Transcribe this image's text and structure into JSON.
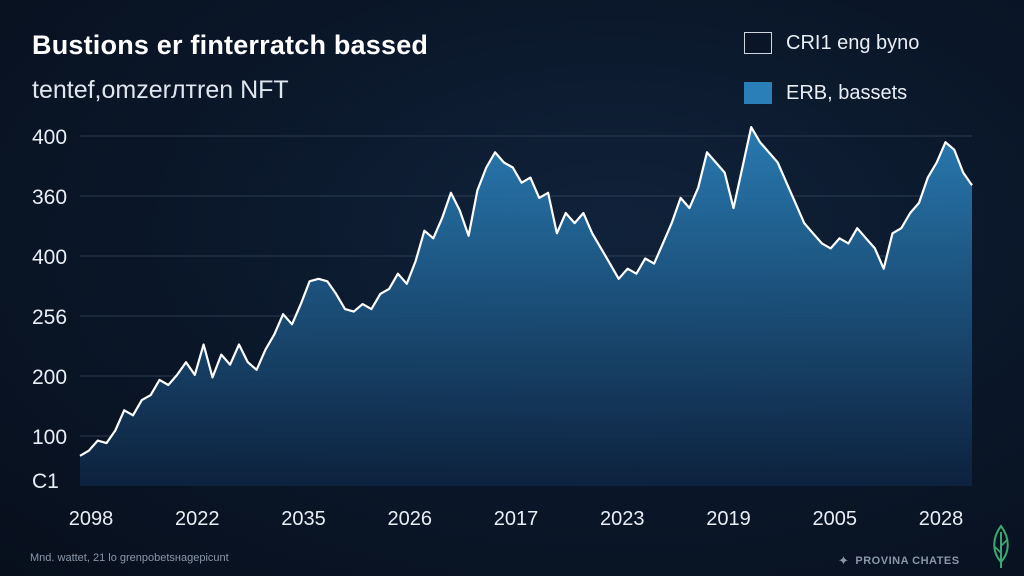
{
  "chart_data": {
    "type": "area",
    "title": "Bustions er finterratch bassed",
    "subtitle": "tentef,omzerлтren NFT",
    "legend_placement": "top-right",
    "legend": [
      {
        "label": "CRI1 eng byno",
        "color": "#0a1628",
        "border": "#cfd6de"
      },
      {
        "label": "ERB, bassets",
        "color": "#2a7fb8",
        "border": "#2a7fb8"
      }
    ],
    "y_tick_labels": [
      "400",
      "360",
      "400",
      "256",
      "200",
      "100",
      "C1"
    ],
    "x_tick_labels": [
      "2098",
      "2022",
      "2035",
      "2026",
      "2017",
      "2023",
      "2019",
      "2005",
      "2028"
    ],
    "grid": true,
    "line_color": "#ffffff",
    "fill_top_color": "#2a7fb8",
    "fill_bottom_color": "#0d2340",
    "series": [
      {
        "values": [
          8,
          10,
          14,
          13,
          18,
          26,
          24,
          30,
          32,
          38,
          36,
          40,
          45,
          40,
          52,
          39,
          48,
          44,
          52,
          45,
          42,
          50,
          56,
          64,
          60,
          68,
          77,
          78,
          77,
          72,
          66,
          65,
          68,
          66,
          72,
          74,
          80,
          76,
          85,
          97,
          94,
          102,
          112,
          105,
          95,
          113,
          122,
          128,
          124,
          122,
          116,
          118,
          110,
          112,
          96,
          104,
          100,
          104,
          96,
          90,
          84,
          78,
          82,
          80,
          86,
          84,
          92,
          100,
          110,
          106,
          114,
          128,
          124,
          120,
          106,
          122,
          138,
          132,
          128,
          124,
          116,
          108,
          100,
          96,
          92,
          90,
          94,
          92,
          98,
          94,
          90,
          82,
          96,
          98,
          104,
          108,
          118,
          124,
          132,
          129,
          120,
          115
        ]
      }
    ]
  },
  "footer": {
    "source": "Mnd. wattet, 21 lo grenpobetsнagepicunt",
    "brand": "PROVINA CHATES"
  }
}
